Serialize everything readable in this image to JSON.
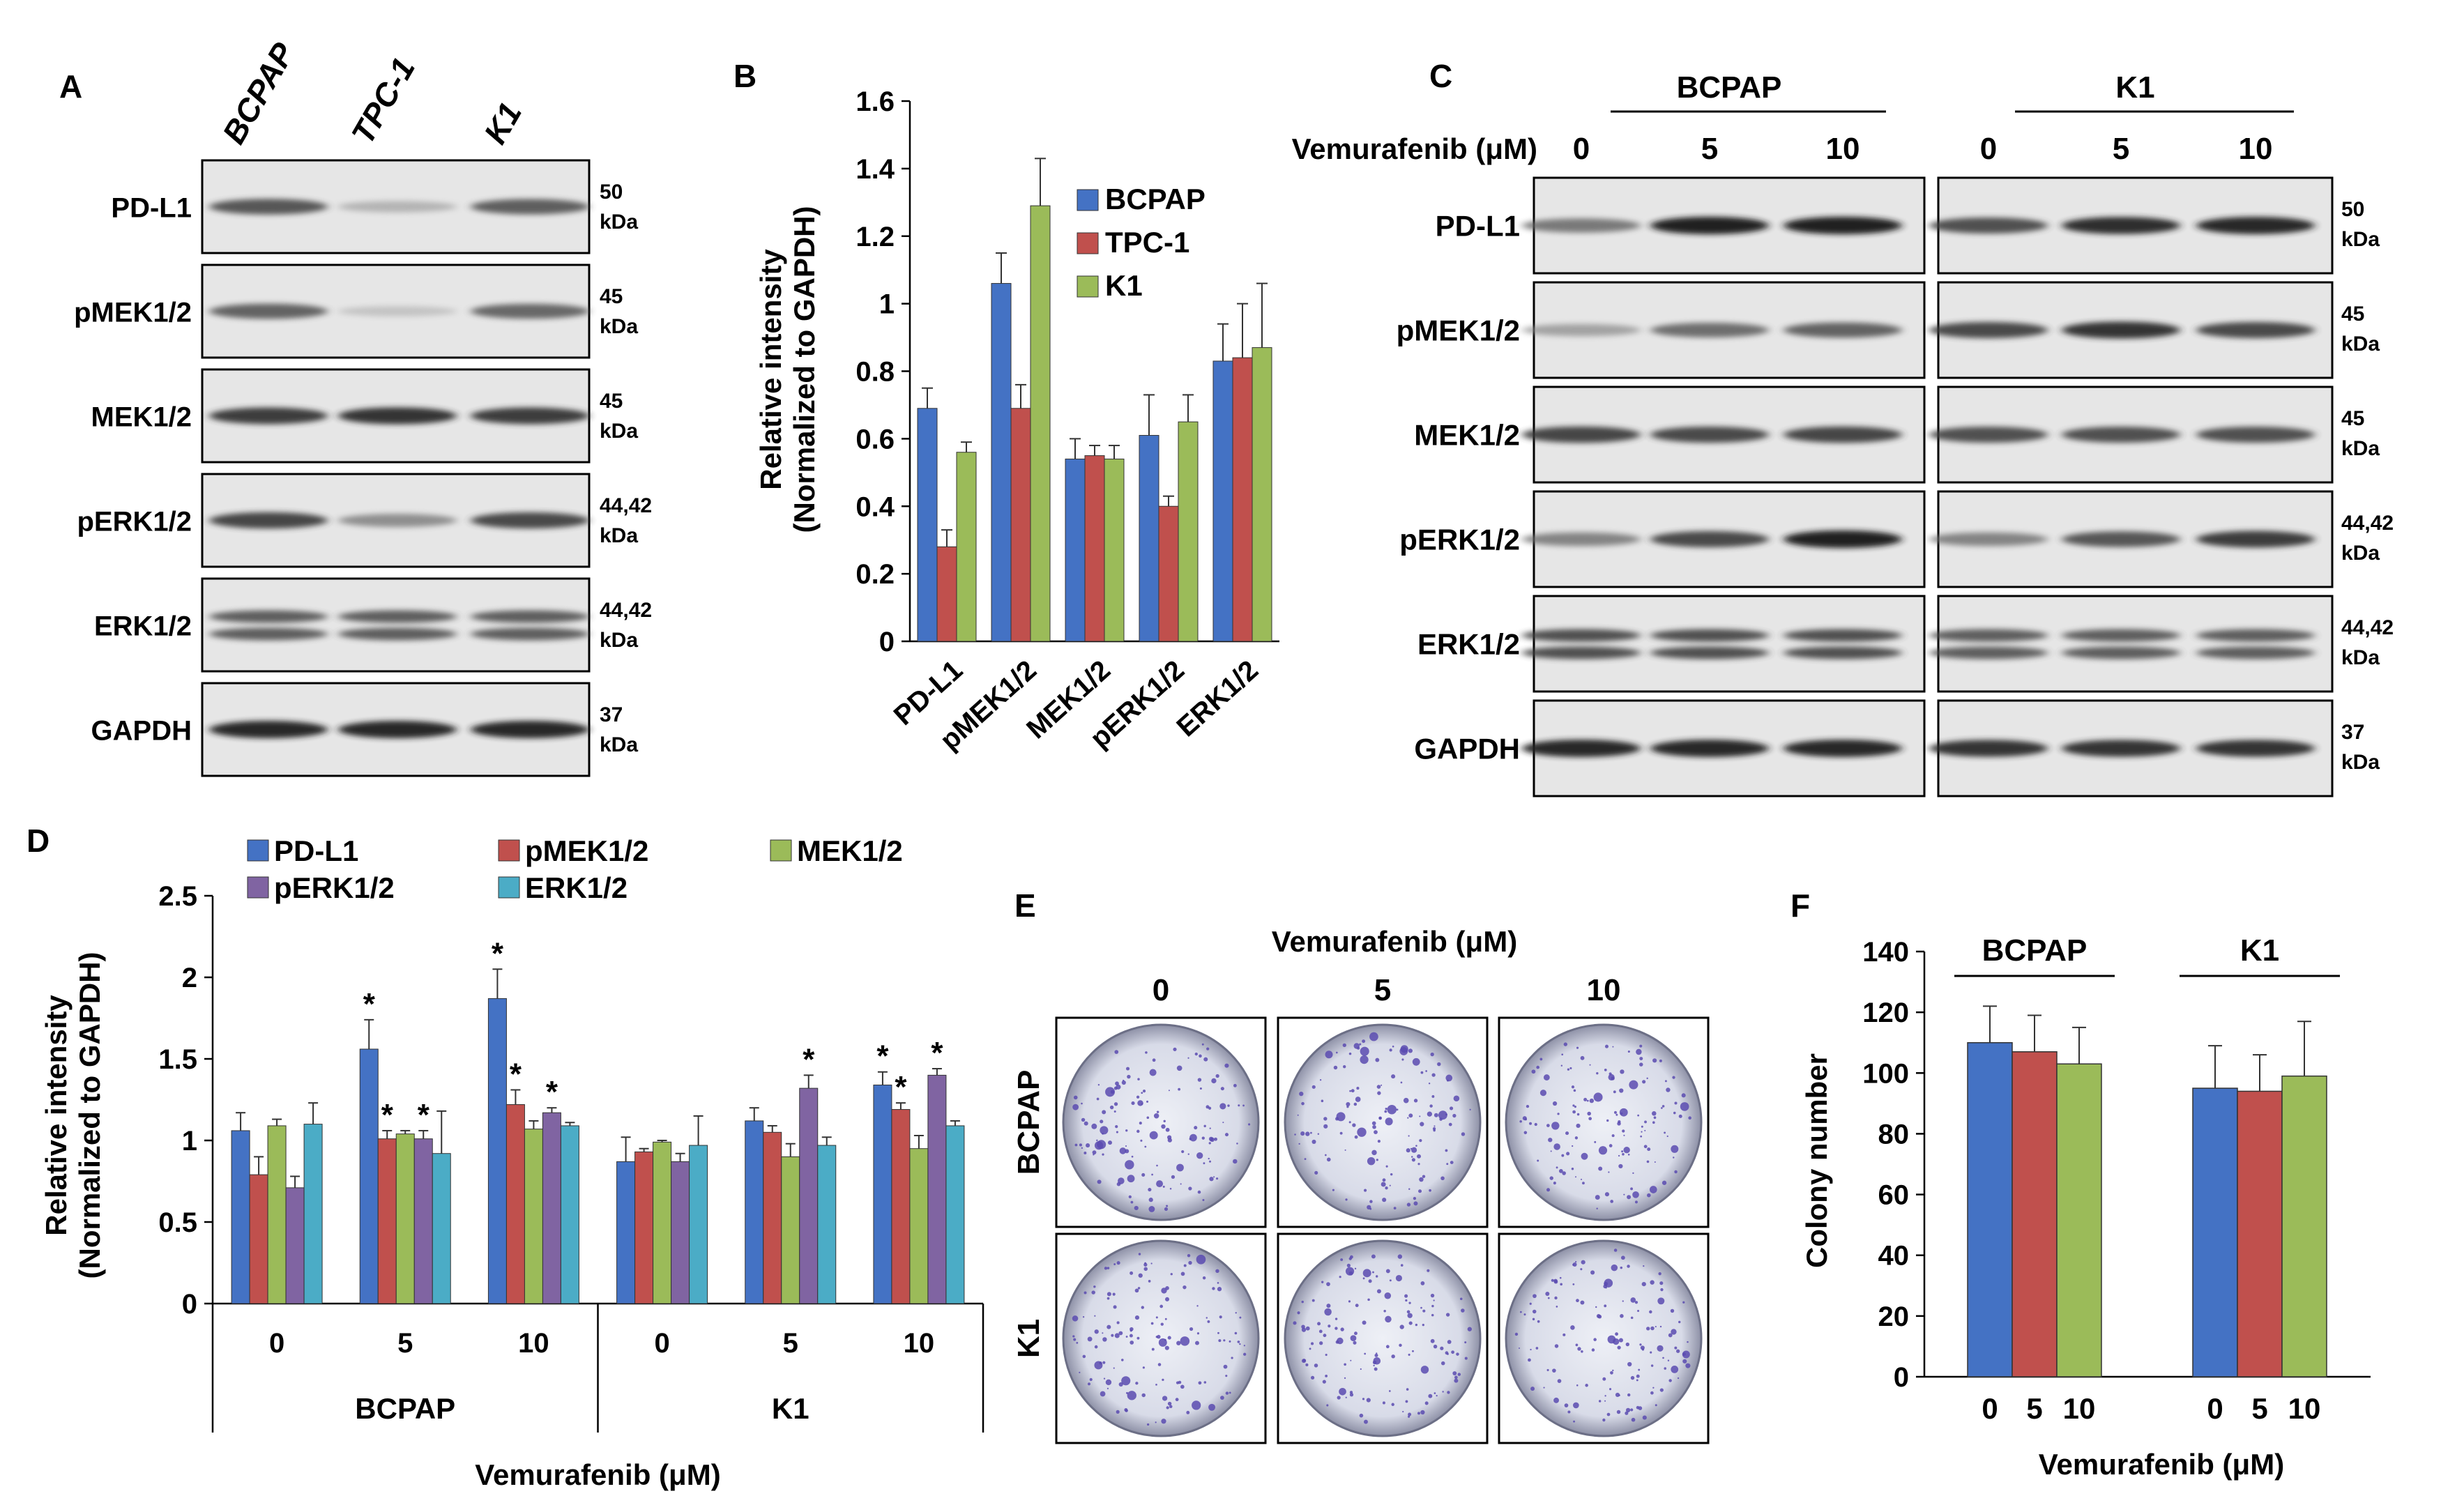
{
  "panel_letters": {
    "A": "A",
    "B": "B",
    "C": "C",
    "D": "D",
    "E": "E",
    "F": "F"
  },
  "blot_a": {
    "lanes": [
      "BCPAP",
      "TPC-1",
      "K1"
    ],
    "rows": [
      {
        "label": "PD-L1",
        "mw1": "50",
        "mw2": "kDa",
        "intensities": [
          0.75,
          0.3,
          0.72
        ],
        "doublet": false
      },
      {
        "label": "pMEK1/2",
        "mw1": "45",
        "mw2": "kDa",
        "intensities": [
          0.7,
          0.2,
          0.68
        ],
        "doublet": false
      },
      {
        "label": "MEK1/2",
        "mw1": "45",
        "mw2": "kDa",
        "intensities": [
          0.85,
          0.88,
          0.85
        ],
        "doublet": false
      },
      {
        "label": "pERK1/2",
        "mw1": "44,42",
        "mw2": "kDa",
        "intensities": [
          0.82,
          0.5,
          0.8
        ],
        "doublet": false
      },
      {
        "label": "ERK1/2",
        "mw1": "44,42",
        "mw2": "kDa",
        "intensities": [
          0.72,
          0.72,
          0.72
        ],
        "doublet": true
      },
      {
        "label": "GAPDH",
        "mw1": "37",
        "mw2": "kDa",
        "intensities": [
          0.92,
          0.92,
          0.92
        ],
        "doublet": false
      }
    ]
  },
  "blot_c": {
    "treatment_label": "Vemurafenib (μM)",
    "groups": [
      {
        "name": "BCPAP",
        "doses": [
          "0",
          "5",
          "10"
        ]
      },
      {
        "name": "K1",
        "doses": [
          "0",
          "5",
          "10"
        ]
      }
    ],
    "rows": [
      {
        "label": "PD-L1",
        "mw1": "50",
        "mw2": "kDa",
        "intensities": [
          0.6,
          0.95,
          0.95,
          0.78,
          0.9,
          0.92
        ],
        "doublet": false
      },
      {
        "label": "pMEK1/2",
        "mw1": "45",
        "mw2": "kDa",
        "intensities": [
          0.4,
          0.65,
          0.7,
          0.8,
          0.88,
          0.8
        ],
        "doublet": false
      },
      {
        "label": "MEK1/2",
        "mw1": "45",
        "mw2": "kDa",
        "intensities": [
          0.82,
          0.8,
          0.82,
          0.78,
          0.78,
          0.78
        ],
        "doublet": false
      },
      {
        "label": "pERK1/2",
        "mw1": "44,42",
        "mw2": "kDa",
        "intensities": [
          0.55,
          0.8,
          0.95,
          0.55,
          0.75,
          0.85
        ],
        "doublet": false
      },
      {
        "label": "ERK1/2",
        "mw1": "44,42",
        "mw2": "kDa",
        "intensities": [
          0.78,
          0.78,
          0.78,
          0.72,
          0.72,
          0.72
        ],
        "doublet": true
      },
      {
        "label": "GAPDH",
        "mw1": "37",
        "mw2": "kDa",
        "intensities": [
          0.92,
          0.92,
          0.92,
          0.88,
          0.88,
          0.88
        ],
        "doublet": false
      }
    ]
  },
  "panel_e": {
    "treatment_label": "Vemurafenib (μM)",
    "doses": [
      "0",
      "5",
      "10"
    ],
    "rows": [
      "BCPAP",
      "K1"
    ],
    "colony_color": "#5b4bb0"
  },
  "chart_data": [
    {
      "id": "B",
      "type": "bar",
      "categories": [
        "PD-L1",
        "pMEK1/2",
        "MEK1/2",
        "pERK1/2",
        "ERK1/2"
      ],
      "series": [
        {
          "name": "BCPAP",
          "color": "#4472c4",
          "values": [
            0.69,
            1.06,
            0.54,
            0.61,
            0.83
          ],
          "errors": [
            0.06,
            0.09,
            0.06,
            0.12,
            0.11
          ]
        },
        {
          "name": "TPC-1",
          "color": "#c0504d",
          "values": [
            0.28,
            0.69,
            0.55,
            0.4,
            0.84
          ],
          "errors": [
            0.05,
            0.07,
            0.03,
            0.03,
            0.16
          ]
        },
        {
          "name": "K1",
          "color": "#9bbb59",
          "values": [
            0.56,
            1.29,
            0.54,
            0.65,
            0.87
          ],
          "errors": [
            0.03,
            0.14,
            0.04,
            0.08,
            0.19
          ]
        }
      ],
      "title": "",
      "ylabel": [
        "Relative intensity",
        "(Normalized to GAPDH)"
      ],
      "ylim": [
        0,
        1.6
      ],
      "yticks": [
        "0",
        "0.2",
        "0.4",
        "0.6",
        "0.8",
        "1",
        "1.2",
        "1.4",
        "1.6"
      ],
      "legend": "top-left inside plot"
    },
    {
      "id": "D",
      "type": "bar",
      "groups": [
        "BCPAP",
        "K1"
      ],
      "categories": [
        "0",
        "5",
        "10",
        "0",
        "5",
        "10"
      ],
      "series": [
        {
          "name": "PD-L1",
          "color": "#4472c4",
          "values": [
            1.06,
            1.56,
            1.87,
            0.87,
            1.12,
            1.34
          ],
          "errors": [
            0.11,
            0.18,
            0.18,
            0.15,
            0.08,
            0.08
          ],
          "sig": [
            false,
            true,
            true,
            false,
            false,
            true
          ]
        },
        {
          "name": "pMEK1/2",
          "color": "#c0504d",
          "values": [
            0.79,
            1.01,
            1.22,
            0.93,
            1.05,
            1.19
          ],
          "errors": [
            0.11,
            0.05,
            0.09,
            0.02,
            0.04,
            0.04
          ],
          "sig": [
            false,
            true,
            true,
            false,
            false,
            true
          ]
        },
        {
          "name": "MEK1/2",
          "color": "#9bbb59",
          "values": [
            1.09,
            1.04,
            1.07,
            0.99,
            0.9,
            0.95
          ],
          "errors": [
            0.04,
            0.02,
            0.05,
            0.01,
            0.08,
            0.08
          ],
          "sig": [
            false,
            false,
            false,
            false,
            false,
            false
          ]
        },
        {
          "name": "pERK1/2",
          "color": "#8064a2",
          "values": [
            0.71,
            1.01,
            1.17,
            0.87,
            1.32,
            1.4
          ],
          "errors": [
            0.07,
            0.05,
            0.03,
            0.05,
            0.08,
            0.04
          ],
          "sig": [
            false,
            true,
            true,
            false,
            true,
            true
          ]
        },
        {
          "name": "ERK1/2",
          "color": "#4bacc6",
          "values": [
            1.1,
            0.92,
            1.09,
            0.97,
            0.97,
            1.09
          ],
          "errors": [
            0.13,
            0.26,
            0.02,
            0.18,
            0.05,
            0.03
          ],
          "sig": [
            false,
            false,
            false,
            false,
            false,
            false
          ]
        }
      ],
      "xlabel": "Vemurafenib (μM)",
      "ylabel": [
        "Relative intensity",
        "(Normalized to GAPDH)"
      ],
      "ylim": [
        0,
        2.5
      ],
      "yticks": [
        "0",
        "0.5",
        "1",
        "1.5",
        "2",
        "2.5"
      ],
      "sig_marker": "*",
      "legend": "top"
    },
    {
      "id": "F",
      "type": "bar",
      "groups": [
        "BCPAP",
        "K1"
      ],
      "categories": [
        "0",
        "5",
        "10",
        "0",
        "5",
        "10"
      ],
      "colors": [
        "#4472c4",
        "#c0504d",
        "#9bbb59",
        "#4472c4",
        "#c0504d",
        "#9bbb59"
      ],
      "values": [
        110,
        107,
        103,
        95,
        94,
        99
      ],
      "errors": [
        12,
        12,
        12,
        14,
        12,
        18
      ],
      "xlabel": "Vemurafenib (μM)",
      "ylabel": "Colony number",
      "ylim": [
        0,
        140
      ],
      "yticks": [
        "0",
        "20",
        "40",
        "60",
        "80",
        "100",
        "120",
        "140"
      ]
    }
  ]
}
